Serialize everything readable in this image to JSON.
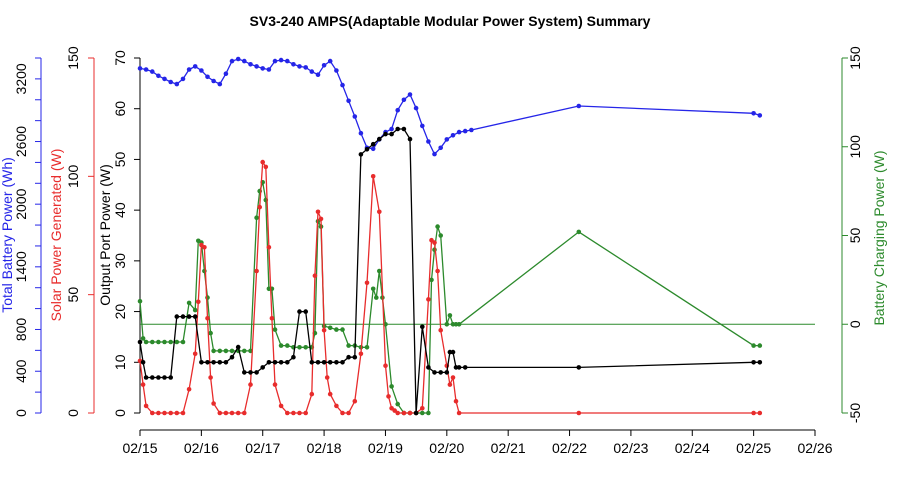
{
  "chart_data": {
    "type": "line",
    "title": "SV3-240 AMPS(Adaptable Modular Power System) Summary",
    "colors": {
      "battery": "#2525e8",
      "solar": "#e82c2c",
      "output": "#000000",
      "charging": "#2c8a2c",
      "axis": "#000000"
    },
    "x_axis": {
      "ticks": [
        "02/15",
        "02/16",
        "02/17",
        "02/18",
        "02/19",
        "02/20",
        "02/21",
        "02/22",
        "02/23",
        "02/24",
        "02/25",
        "02/26"
      ],
      "range": [
        0,
        11
      ]
    },
    "y_axes": {
      "battery": {
        "label": "Total Battery Power (Wh)",
        "range": [
          0,
          3400
        ],
        "ticks": [
          "0",
          "400",
          "800",
          "1400",
          "2000",
          "2600",
          "3200"
        ],
        "tick_values": [
          0,
          400,
          800,
          1400,
          2000,
          2600,
          3200
        ]
      },
      "solar": {
        "label": "Solar Power Generated (W)",
        "range": [
          0,
          150
        ],
        "ticks": [
          "0",
          "50",
          "100",
          "150"
        ],
        "tick_values": [
          0,
          50,
          100,
          150
        ]
      },
      "output": {
        "label": "Output Port Power (W)",
        "range": [
          0,
          70
        ],
        "ticks": [
          "0",
          "10",
          "20",
          "30",
          "40",
          "50",
          "60",
          "70"
        ],
        "tick_values": [
          0,
          10,
          20,
          30,
          40,
          50,
          60,
          70
        ]
      },
      "charging": {
        "label": "Battery Charging Power (W)",
        "range": [
          -50,
          150
        ],
        "ticks": [
          "-50",
          "0",
          "50",
          "100",
          "150"
        ],
        "tick_values": [
          -50,
          0,
          50,
          100,
          150
        ]
      }
    },
    "reference_line": {
      "series_axis": "charging",
      "value": 0
    },
    "series": [
      {
        "name": "Total Battery Power (Wh)",
        "axis": "battery",
        "color_key": "battery",
        "x": [
          0.0,
          0.1,
          0.2,
          0.3,
          0.4,
          0.5,
          0.6,
          0.7,
          0.8,
          0.9,
          1.0,
          1.1,
          1.2,
          1.3,
          1.4,
          1.5,
          1.6,
          1.7,
          1.8,
          1.9,
          2.0,
          2.1,
          2.2,
          2.3,
          2.4,
          2.5,
          2.6,
          2.7,
          2.8,
          2.9,
          3.0,
          3.1,
          3.2,
          3.3,
          3.4,
          3.5,
          3.6,
          3.7,
          3.8,
          3.9,
          4.0,
          4.1,
          4.2,
          4.3,
          4.4,
          4.5,
          4.6,
          4.7,
          4.8,
          4.9,
          5.0,
          5.1,
          5.2,
          5.3,
          5.4,
          7.15,
          10.0,
          10.1
        ],
        "values": [
          3300,
          3290,
          3270,
          3230,
          3200,
          3170,
          3150,
          3200,
          3290,
          3320,
          3280,
          3220,
          3180,
          3150,
          3250,
          3370,
          3390,
          3370,
          3340,
          3320,
          3300,
          3290,
          3370,
          3380,
          3370,
          3340,
          3320,
          3310,
          3270,
          3240,
          3330,
          3370,
          3280,
          3140,
          2990,
          2840,
          2680,
          2540,
          2530,
          2620,
          2690,
          2720,
          2900,
          3000,
          3050,
          2920,
          2750,
          2600,
          2480,
          2540,
          2620,
          2660,
          2690,
          2700,
          2710,
          2940,
          2870,
          2850
        ]
      },
      {
        "name": "Solar Power Generated (W)",
        "axis": "solar",
        "color_key": "solar",
        "x": [
          0.0,
          0.05,
          0.1,
          0.2,
          0.3,
          0.4,
          0.5,
          0.6,
          0.7,
          0.8,
          0.9,
          0.95,
          1.0,
          1.05,
          1.1,
          1.15,
          1.2,
          1.3,
          1.4,
          1.5,
          1.6,
          1.7,
          1.8,
          1.9,
          1.95,
          2.0,
          2.05,
          2.1,
          2.15,
          2.2,
          2.3,
          2.4,
          2.5,
          2.6,
          2.7,
          2.8,
          2.85,
          2.9,
          2.95,
          3.0,
          3.05,
          3.1,
          3.2,
          3.3,
          3.4,
          3.5,
          3.6,
          3.7,
          3.8,
          3.9,
          4.0,
          4.05,
          4.1,
          4.15,
          4.2,
          4.3,
          4.4,
          4.5,
          4.6,
          4.7,
          4.75,
          4.8,
          4.85,
          4.9,
          5.0,
          5.05,
          5.1,
          5.15,
          5.2,
          7.15,
          10.0,
          10.1
        ],
        "values": [
          22,
          12,
          3,
          0,
          0,
          0,
          0,
          0,
          0,
          10,
          25,
          47,
          71,
          70,
          40,
          15,
          4,
          0,
          0,
          0,
          0,
          0,
          12,
          60,
          87,
          106,
          104,
          70,
          40,
          12,
          3,
          0,
          0,
          0,
          0,
          8,
          58,
          85,
          82,
          35,
          15,
          8,
          3,
          0,
          0,
          5,
          25,
          55,
          100,
          85,
          20,
          7,
          2,
          1,
          0,
          0,
          0,
          0,
          2,
          48,
          73,
          72,
          60,
          35,
          20,
          12,
          15,
          5,
          0,
          0,
          0,
          0
        ]
      },
      {
        "name": "Output Port Power (W)",
        "axis": "output",
        "color_key": "output",
        "x": [
          0.0,
          0.05,
          0.1,
          0.2,
          0.3,
          0.4,
          0.5,
          0.6,
          0.7,
          0.8,
          0.9,
          1.0,
          1.1,
          1.2,
          1.3,
          1.4,
          1.5,
          1.6,
          1.7,
          1.8,
          1.9,
          2.0,
          2.1,
          2.2,
          2.3,
          2.4,
          2.5,
          2.6,
          2.7,
          2.8,
          2.9,
          3.0,
          3.1,
          3.2,
          3.3,
          3.4,
          3.5,
          3.6,
          3.7,
          3.8,
          3.9,
          4.0,
          4.1,
          4.2,
          4.3,
          4.4,
          4.5,
          4.6,
          4.7,
          4.8,
          4.9,
          5.0,
          5.05,
          5.1,
          5.15,
          5.2,
          5.3,
          7.15,
          10.0,
          10.1
        ],
        "values": [
          14,
          10,
          7,
          7,
          7,
          7,
          7,
          19,
          19,
          19,
          19,
          10,
          10,
          10,
          10,
          10,
          11,
          13,
          8,
          8,
          8,
          9,
          10,
          10,
          10,
          10,
          11,
          20,
          20,
          10,
          10,
          10,
          10,
          10,
          10,
          11,
          11,
          51,
          52,
          53,
          54,
          55,
          55,
          56,
          56,
          54,
          0,
          17,
          9,
          8,
          8,
          8,
          12,
          12,
          9,
          9,
          9,
          9,
          10,
          10
        ]
      },
      {
        "name": "Battery Charging Power (W)",
        "axis": "charging",
        "color_key": "charging",
        "x": [
          0.0,
          0.05,
          0.1,
          0.2,
          0.3,
          0.4,
          0.5,
          0.6,
          0.7,
          0.8,
          0.9,
          0.95,
          1.0,
          1.05,
          1.1,
          1.15,
          1.2,
          1.3,
          1.4,
          1.5,
          1.6,
          1.7,
          1.8,
          1.9,
          1.95,
          2.0,
          2.05,
          2.1,
          2.15,
          2.2,
          2.3,
          2.4,
          2.5,
          2.6,
          2.7,
          2.8,
          2.85,
          2.9,
          2.95,
          3.0,
          3.1,
          3.2,
          3.3,
          3.4,
          3.5,
          3.6,
          3.7,
          3.8,
          3.85,
          3.9,
          3.95,
          4.0,
          4.1,
          4.2,
          4.3,
          4.4,
          4.5,
          4.6,
          4.7,
          4.75,
          4.8,
          4.85,
          4.9,
          5.0,
          5.05,
          5.1,
          5.15,
          5.2,
          7.15,
          10.0,
          10.1
        ],
        "values": [
          13,
          -8,
          -10,
          -10,
          -10,
          -10,
          -10,
          -10,
          -10,
          12,
          8,
          47,
          46,
          30,
          15,
          -5,
          -15,
          -15,
          -15,
          -15,
          -15,
          -15,
          -15,
          60,
          75,
          80,
          70,
          20,
          20,
          -3,
          -12,
          -12,
          -13,
          -13,
          -13,
          -13,
          -5,
          58,
          55,
          -1,
          -2,
          -3,
          -3,
          -12,
          -12,
          -13,
          -13,
          20,
          15,
          30,
          15,
          0,
          -35,
          -45,
          -55,
          -60,
          -60,
          -60,
          -50,
          25,
          42,
          55,
          50,
          0,
          5,
          0,
          0,
          0,
          52,
          -12,
          -12
        ]
      }
    ]
  }
}
